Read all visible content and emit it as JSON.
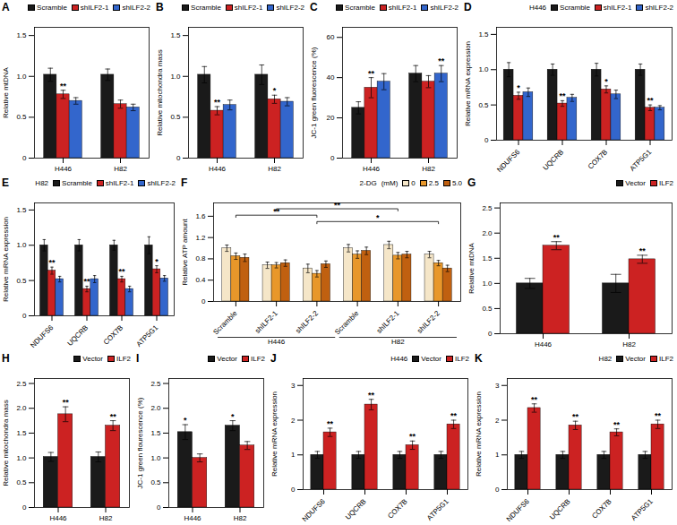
{
  "chart_data": [
    {
      "type": "bar",
      "title": "A",
      "ylabel": "Relative mtDNA",
      "categories": [
        "H446",
        "H82"
      ],
      "series": [
        {
          "name": "Scramble",
          "color": "#1a1a1a",
          "values": [
            1.02,
            1.02
          ],
          "errors": [
            0.08,
            0.07
          ]
        },
        {
          "name": "shILF2-1",
          "color": "#cc2222",
          "values": [
            0.78,
            0.66
          ],
          "errors": [
            0.05,
            0.05
          ]
        },
        {
          "name": "shILF2-2",
          "color": "#3366cc",
          "values": [
            0.7,
            0.62
          ],
          "errors": [
            0.04,
            0.04
          ]
        }
      ],
      "ylim": [
        0,
        1.6
      ],
      "yticks": [
        0,
        0.5,
        {
          "value": 1.0,
          "label": "1.0"
        },
        1.5
      ],
      "legend": "top",
      "annotations": [
        {
          "category": "H446",
          "series": "shILF2-1",
          "text": "**"
        }
      ]
    },
    {
      "type": "bar",
      "title": "B",
      "ylabel": "Relative mitochondra mass",
      "categories": [
        "H446",
        "H82"
      ],
      "series": [
        {
          "name": "Scramble",
          "color": "#1a1a1a",
          "values": [
            1.02,
            1.02
          ],
          "errors": [
            0.1,
            0.12
          ]
        },
        {
          "name": "shILF2-1",
          "color": "#cc2222",
          "values": [
            0.58,
            0.72
          ],
          "errors": [
            0.05,
            0.05
          ]
        },
        {
          "name": "shILF2-2",
          "color": "#3366cc",
          "values": [
            0.65,
            0.69
          ],
          "errors": [
            0.06,
            0.05
          ]
        }
      ],
      "ylim": [
        0,
        1.6
      ],
      "yticks": [
        0,
        0.5,
        {
          "value": 1.0,
          "label": "1.0"
        },
        1.5
      ],
      "legend": "top",
      "annotations": [
        {
          "category": "H446",
          "series": "shILF2-1",
          "text": "**"
        },
        {
          "category": "H82",
          "series": "shILF2-1",
          "text": "*"
        }
      ]
    },
    {
      "type": "bar",
      "title": "C",
      "ylabel": "JC-1 green fluorescence (%)",
      "categories": [
        "H446",
        "H82"
      ],
      "series": [
        {
          "name": "Scramble",
          "color": "#1a1a1a",
          "values": [
            25,
            42
          ],
          "errors": [
            3,
            4
          ]
        },
        {
          "name": "shILF2-1",
          "color": "#cc2222",
          "values": [
            35,
            38
          ],
          "errors": [
            5,
            3
          ]
        },
        {
          "name": "shILF2-2",
          "color": "#3366cc",
          "values": [
            38,
            42
          ],
          "errors": [
            4,
            4
          ]
        }
      ],
      "ylim": [
        0,
        65
      ],
      "yticks": [
        0,
        20,
        40,
        60
      ],
      "legend": "top",
      "annotations": [
        {
          "category": "H446",
          "series": "shILF2-1",
          "text": "**"
        },
        {
          "category": "H82",
          "series": "shILF2-2",
          "text": "**"
        }
      ]
    },
    {
      "type": "bar",
      "title": "D",
      "ylabel": "Relative mRNA expression",
      "categories": [
        "NDUFS6",
        "UQCRB",
        "COX7B",
        "ATP5G1"
      ],
      "series": [
        {
          "name": "Scramble",
          "color": "#1a1a1a",
          "values": [
            1.0,
            1.0,
            1.0,
            1.0
          ],
          "errors": [
            0.1,
            0.08,
            0.09,
            0.08
          ]
        },
        {
          "name": "shILF2-1",
          "color": "#cc2222",
          "values": [
            0.63,
            0.52,
            0.72,
            0.46
          ],
          "errors": [
            0.05,
            0.04,
            0.05,
            0.04
          ]
        },
        {
          "name": "shILF2-2",
          "color": "#3366cc",
          "values": [
            0.68,
            0.6,
            0.65,
            0.46
          ],
          "errors": [
            0.06,
            0.05,
            0.06,
            0.03
          ]
        }
      ],
      "ylim": [
        0,
        1.6
      ],
      "yticks": [
        0,
        0.5,
        {
          "value": 1.0,
          "label": "1.0"
        },
        1.5
      ],
      "legend": "top",
      "annotations": [
        {
          "text": "H446"
        },
        {
          "category": "NDUFS6",
          "series": "shILF2-1",
          "text": "*"
        },
        {
          "category": "UQCRB",
          "series": "shILF2-1",
          "text": "**"
        },
        {
          "category": "COX7B",
          "series": "shILF2-1",
          "text": "*"
        },
        {
          "category": "ATP5G1",
          "series": "shILF2-1",
          "text": "**"
        }
      ]
    },
    {
      "type": "bar",
      "title": "E",
      "ylabel": "Relative mRNA expression",
      "categories": [
        "NDUFS6",
        "UQCRB",
        "COX7B",
        "ATP5G1"
      ],
      "series": [
        {
          "name": "Scramble",
          "color": "#1a1a1a",
          "values": [
            1.0,
            1.0,
            1.0,
            1.0
          ],
          "errors": [
            0.08,
            0.08,
            0.07,
            0.12
          ]
        },
        {
          "name": "shILF2-1",
          "color": "#cc2222",
          "values": [
            0.64,
            0.38,
            0.52,
            0.66
          ],
          "errors": [
            0.05,
            0.04,
            0.04,
            0.05
          ]
        },
        {
          "name": "shILF2-2",
          "color": "#3366cc",
          "values": [
            0.52,
            0.52,
            0.38,
            0.53
          ],
          "errors": [
            0.04,
            0.05,
            0.04,
            0.04
          ]
        }
      ],
      "ylim": [
        0,
        1.6
      ],
      "yticks": [
        0,
        0.5,
        {
          "value": 1.0,
          "label": "1.0"
        },
        1.5
      ],
      "legend": "top",
      "annotations": [
        {
          "text": "H82"
        },
        {
          "category": "NDUFS6",
          "series": "shILF2-1",
          "text": "**"
        },
        {
          "category": "UQCRB",
          "series": "shILF2-1",
          "text": "**"
        },
        {
          "category": "COX7B",
          "series": "shILF2-1",
          "text": "**"
        },
        {
          "category": "ATP5G1",
          "series": "shILF2-1",
          "text": "*"
        }
      ]
    },
    {
      "type": "bar",
      "title": "F",
      "ylabel": "Relative ATP amount",
      "categories": [
        "Scramble",
        "shILF2-1",
        "shILF2-2",
        "Scramble",
        "shILF2-1",
        "shILF2-2"
      ],
      "series": [
        {
          "name": "0",
          "color": "#f5e6c8",
          "values": [
            1.0,
            0.68,
            0.62,
            1.0,
            1.06,
            0.88
          ],
          "errors": [
            0.06,
            0.06,
            0.08,
            0.07,
            0.07,
            0.06
          ]
        },
        {
          "name": "2.5",
          "color": "#e8972a",
          "values": [
            0.85,
            0.68,
            0.52,
            0.88,
            0.86,
            0.72
          ],
          "errors": [
            0.06,
            0.05,
            0.06,
            0.07,
            0.06,
            0.05
          ]
        },
        {
          "name": "5.0",
          "color": "#c06010",
          "values": [
            0.82,
            0.72,
            0.7,
            0.95,
            0.88,
            0.62
          ],
          "errors": [
            0.07,
            0.06,
            0.06,
            0.07,
            0.06,
            0.06
          ]
        }
      ],
      "ylim": [
        0,
        1.85
      ],
      "yticks": [
        0,
        0.4,
        0.8,
        1.2,
        1.6
      ],
      "legend": "top",
      "annotations": [
        {
          "text": "2-DG"
        },
        {
          "text": "(mM)"
        },
        {
          "text": "**",
          "x": [
            0,
            2
          ],
          "y": 1.62
        },
        {
          "text": "**",
          "x": [
            1,
            4
          ],
          "y": 1.74
        },
        {
          "text": "*",
          "x": [
            2,
            5
          ],
          "y": 1.5
        },
        {
          "text": "H446",
          "x": [
            0,
            2
          ]
        },
        {
          "text": "H82",
          "x": [
            3,
            5
          ]
        }
      ]
    },
    {
      "type": "bar",
      "title": "G",
      "ylabel": "Relative mtDNA",
      "categories": [
        "H446",
        "H82"
      ],
      "series": [
        {
          "name": "Vector",
          "color": "#1a1a1a",
          "values": [
            1.0,
            1.0
          ],
          "errors": [
            0.1,
            0.18
          ]
        },
        {
          "name": "ILF2",
          "color": "#cc2222",
          "values": [
            1.75,
            1.48
          ],
          "errors": [
            0.08,
            0.08
          ]
        }
      ],
      "ylim": [
        0,
        2.6
      ],
      "yticks": [
        0,
        0.5,
        {
          "value": 1.0,
          "label": "1.0"
        },
        1.5,
        {
          "value": 2.0,
          "label": "2.0"
        },
        2.5
      ],
      "legend": "top",
      "annotations": [
        {
          "category": "H446",
          "series": "ILF2",
          "text": "**"
        },
        {
          "category": "H82",
          "series": "ILF2",
          "text": "**"
        }
      ]
    },
    {
      "type": "bar",
      "title": "H",
      "ylabel": "Relative mitochondra mass",
      "categories": [
        "H446",
        "H82"
      ],
      "series": [
        {
          "name": "Vector",
          "color": "#1a1a1a",
          "values": [
            1.02,
            1.02
          ],
          "errors": [
            0.09,
            0.1
          ]
        },
        {
          "name": "ILF2",
          "color": "#cc2222",
          "values": [
            1.88,
            1.65
          ],
          "errors": [
            0.15,
            0.1
          ]
        }
      ],
      "ylim": [
        0,
        2.6
      ],
      "yticks": [
        0,
        0.5,
        {
          "value": 1.0,
          "label": "1.0"
        },
        1.5,
        {
          "value": 2.0,
          "label": "2.0"
        },
        2.5
      ],
      "legend": "top",
      "annotations": [
        {
          "category": "H446",
          "series": "ILF2",
          "text": "**"
        },
        {
          "category": "H82",
          "series": "ILF2",
          "text": "**"
        }
      ]
    },
    {
      "type": "bar",
      "title": "I",
      "ylabel": "JC-1 green flourescence (%)",
      "categories": [
        "H446",
        "H82"
      ],
      "series": [
        {
          "name": "Vector",
          "color": "#1a1a1a",
          "values": [
            1.52,
            1.65
          ],
          "errors": [
            0.15,
            0.1
          ]
        },
        {
          "name": "ILF2",
          "color": "#cc2222",
          "values": [
            1.0,
            1.25
          ],
          "errors": [
            0.08,
            0.08
          ]
        }
      ],
      "ylim": [
        0,
        2.6
      ],
      "yticks": [
        0,
        0.5,
        {
          "value": 1.0,
          "label": "1.0"
        },
        1.5,
        {
          "value": 2.0,
          "label": "2.0"
        },
        2.5
      ],
      "legend": "top",
      "annotations": [
        {
          "category": "H446",
          "series": "Vector",
          "text": "*"
        },
        {
          "category": "H82",
          "series": "Vector",
          "text": "*"
        }
      ]
    },
    {
      "type": "bar",
      "title": "J",
      "ylabel": "Relative mRNA expression",
      "categories": [
        "NDUFS6",
        "UQCRB",
        "COX7B",
        "ATP5G1"
      ],
      "series": [
        {
          "name": "Vector",
          "color": "#1a1a1a",
          "values": [
            1.0,
            1.0,
            1.0,
            1.0
          ],
          "errors": [
            0.1,
            0.1,
            0.1,
            0.1
          ]
        },
        {
          "name": "ILF2",
          "color": "#cc2222",
          "values": [
            1.65,
            2.45,
            1.28,
            1.88
          ],
          "errors": [
            0.12,
            0.15,
            0.12,
            0.12
          ]
        }
      ],
      "ylim": [
        0,
        3.2
      ],
      "yticks": [
        0,
        1,
        2,
        3
      ],
      "legend": "top",
      "annotations": [
        {
          "text": "H446"
        },
        {
          "category": "NDUFS6",
          "series": "ILF2",
          "text": "**"
        },
        {
          "category": "UQCRB",
          "series": "ILF2",
          "text": "**"
        },
        {
          "category": "COX7B",
          "series": "ILF2",
          "text": "**"
        },
        {
          "category": "ATP5G1",
          "series": "ILF2",
          "text": "**"
        }
      ]
    },
    {
      "type": "bar",
      "title": "K",
      "ylabel": "Relative mRNA expression",
      "categories": [
        "NDUFS6",
        "UQCRB",
        "COX7B",
        "ATP5G1"
      ],
      "series": [
        {
          "name": "Vector",
          "color": "#1a1a1a",
          "values": [
            1.0,
            1.0,
            1.0,
            1.0
          ],
          "errors": [
            0.1,
            0.1,
            0.1,
            0.1
          ]
        },
        {
          "name": "ILF2",
          "color": "#cc2222",
          "values": [
            2.35,
            1.85,
            1.65,
            1.88
          ],
          "errors": [
            0.12,
            0.12,
            0.1,
            0.12
          ]
        }
      ],
      "ylim": [
        0,
        3.2
      ],
      "yticks": [
        0,
        1,
        2,
        3
      ],
      "legend": "top",
      "annotations": [
        {
          "text": "H82"
        },
        {
          "category": "NDUFS6",
          "series": "ILF2",
          "text": "**"
        },
        {
          "category": "UQCRB",
          "series": "ILF2",
          "text": "**"
        },
        {
          "category": "COX7B",
          "series": "ILF2",
          "text": "**"
        },
        {
          "category": "ATP5G1",
          "series": "ILF2",
          "text": "**"
        }
      ]
    }
  ]
}
